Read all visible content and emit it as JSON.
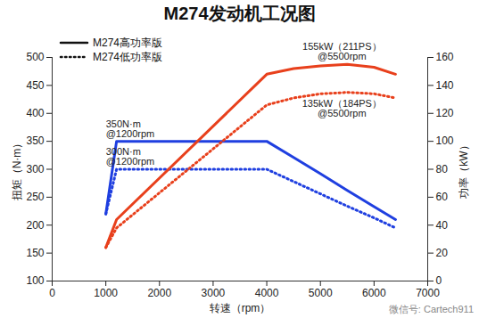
{
  "chart_data": {
    "type": "line",
    "title": "M274发动机工况图",
    "x_label": "转速（rpm）",
    "y_label": "扭矩（N·m）",
    "y2_label": "功率（kW）",
    "x": [
      1000,
      1200,
      4000,
      4500,
      5000,
      5500,
      6000,
      6400
    ],
    "series": [
      {
        "name": "M274高功率版",
        "color": "#1f3fe0",
        "line_style": "solid",
        "axis": "y",
        "values": [
          220,
          350,
          350,
          321,
          292,
          262,
          233,
          210
        ]
      },
      {
        "name": "M274低功率版",
        "color": "#1f3fe0",
        "line_style": "dotted",
        "axis": "y",
        "values": [
          220,
          300,
          300,
          278,
          256,
          234,
          213,
          195
        ]
      },
      {
        "name": "M274高功率版",
        "color": "#e8401c",
        "line_style": "solid",
        "axis": "y2",
        "values": [
          24,
          44,
          148,
          152,
          154,
          155,
          153,
          148
        ]
      },
      {
        "name": "M274低功率版",
        "color": "#e8401c",
        "line_style": "dotted",
        "axis": "y2",
        "values": [
          24,
          38,
          126,
          131,
          134,
          135,
          134,
          131
        ]
      }
    ],
    "xlim": [
      0,
      7000
    ],
    "xticks": [
      0,
      1000,
      2000,
      3000,
      4000,
      5000,
      6000,
      7000
    ],
    "ylim": [
      100,
      500
    ],
    "yticks": [
      100,
      150,
      200,
      250,
      300,
      350,
      400,
      450,
      500
    ],
    "y2lim": [
      0,
      160
    ],
    "y2ticks": [
      0,
      20,
      40,
      60,
      80,
      100,
      120,
      140,
      160
    ],
    "annotations": [
      {
        "text": "155kW（211PS）\n@5500rpm",
        "x": 5500,
        "y": 155,
        "axis": "y2"
      },
      {
        "text": "135kW（184PS）\n@5500rpm",
        "x": 5500,
        "y": 135,
        "axis": "y2"
      },
      {
        "text": "350N·m\n@1200rpm",
        "x": 1200,
        "y": 350,
        "axis": "y"
      },
      {
        "text": "300N·m\n@1200rpm",
        "x": 1200,
        "y": 300,
        "axis": "y"
      }
    ],
    "source": "微信号: Cartech911",
    "grid": false,
    "legend": "top-left"
  }
}
